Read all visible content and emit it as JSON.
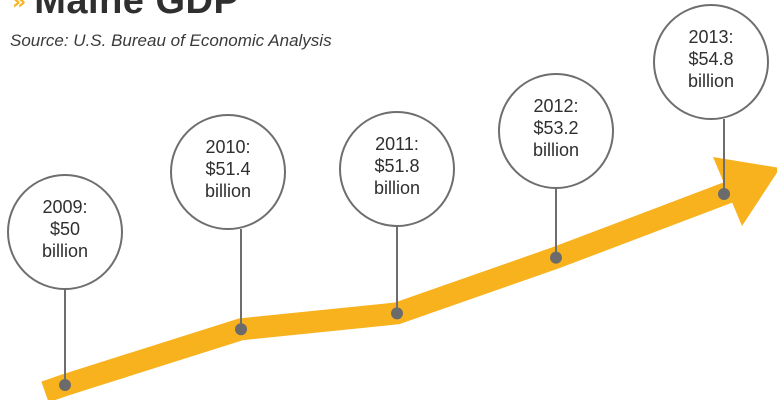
{
  "title": "Maine GDP",
  "source": "Source: U.S. Bureau of Economic Analysis",
  "colors": {
    "arrow": "#f7b21e",
    "marker": "#6b6b6b",
    "text": "#2f2f2f",
    "circle_stroke": "#6e6e6e"
  },
  "chart_data": {
    "type": "line",
    "title": "Maine GDP",
    "x": [
      "2009",
      "2010",
      "2011",
      "2012",
      "2013"
    ],
    "values": [
      50,
      51.4,
      51.8,
      53.2,
      54.8
    ],
    "unit": "billion dollars",
    "labels": [
      {
        "year": "2009:",
        "amount": "$50",
        "unit": "billion"
      },
      {
        "year": "2010:",
        "amount": "$51.4",
        "unit": "billion"
      },
      {
        "year": "2011:",
        "amount": "$51.8",
        "unit": "billion"
      },
      {
        "year": "2012:",
        "amount": "$53.2",
        "unit": "billion"
      },
      {
        "year": "2013:",
        "amount": "$54.8",
        "unit": "billion"
      }
    ]
  }
}
